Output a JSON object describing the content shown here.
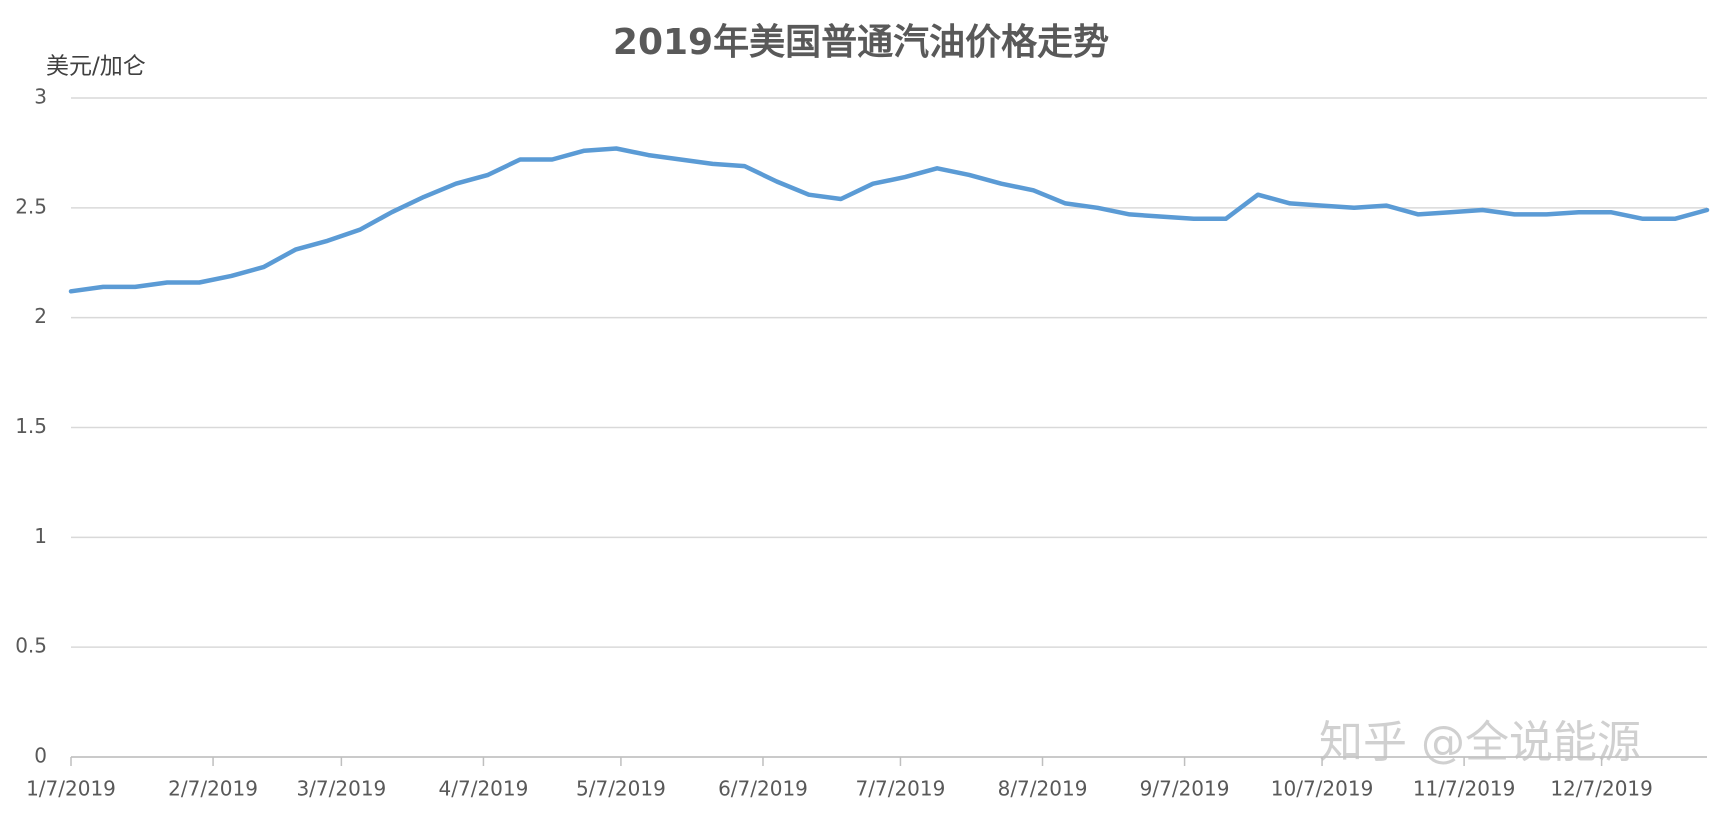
{
  "chart_data": {
    "type": "line",
    "title": "2019年美国普通汽油价格走势",
    "y_label": "美元/加仑",
    "watermark": "知乎 @全说能源",
    "x": [
      "1/7/2019",
      "1/14/2019",
      "1/21/2019",
      "1/28/2019",
      "2/4/2019",
      "2/11/2019",
      "2/18/2019",
      "2/25/2019",
      "3/4/2019",
      "3/11/2019",
      "3/18/2019",
      "3/25/2019",
      "4/1/2019",
      "4/8/2019",
      "4/15/2019",
      "4/22/2019",
      "4/29/2019",
      "5/6/2019",
      "5/13/2019",
      "5/20/2019",
      "5/27/2019",
      "6/3/2019",
      "6/10/2019",
      "6/17/2019",
      "6/24/2019",
      "7/1/2019",
      "7/8/2019",
      "7/15/2019",
      "7/22/2019",
      "7/29/2019",
      "8/5/2019",
      "8/12/2019",
      "8/19/2019",
      "8/26/2019",
      "9/2/2019",
      "9/9/2019",
      "9/16/2019",
      "9/23/2019",
      "9/30/2019",
      "10/7/2019",
      "10/14/2019",
      "10/21/2019",
      "10/28/2019",
      "11/4/2019",
      "11/11/2019",
      "11/18/2019",
      "11/25/2019",
      "12/2/2019",
      "12/9/2019",
      "12/16/2019",
      "12/23/2019",
      "12/30/2019"
    ],
    "series": [
      {
        "color": "#5b9bd5",
        "values": [
          2.12,
          2.14,
          2.14,
          2.16,
          2.16,
          2.19,
          2.23,
          2.31,
          2.35,
          2.4,
          2.48,
          2.55,
          2.61,
          2.65,
          2.72,
          2.72,
          2.76,
          2.77,
          2.74,
          2.72,
          2.7,
          2.69,
          2.62,
          2.56,
          2.54,
          2.61,
          2.64,
          2.68,
          2.65,
          2.61,
          2.58,
          2.52,
          2.5,
          2.47,
          2.46,
          2.45,
          2.45,
          2.56,
          2.52,
          2.51,
          2.5,
          2.51,
          2.47,
          2.48,
          2.49,
          2.47,
          2.47,
          2.48,
          2.48,
          2.45,
          2.45,
          2.49
        ]
      }
    ],
    "xlim": [
      "1/7/2019",
      "12/30/2019"
    ],
    "xticks": [
      "1/7/2019",
      "2/7/2019",
      "3/7/2019",
      "4/7/2019",
      "5/7/2019",
      "6/7/2019",
      "7/7/2019",
      "8/7/2019",
      "9/7/2019",
      "10/7/2019",
      "11/7/2019",
      "12/7/2019"
    ],
    "ylim": [
      0,
      3
    ],
    "yticks": [
      0,
      0.5,
      1,
      1.5,
      2,
      2.5,
      3
    ],
    "grid": true
  }
}
